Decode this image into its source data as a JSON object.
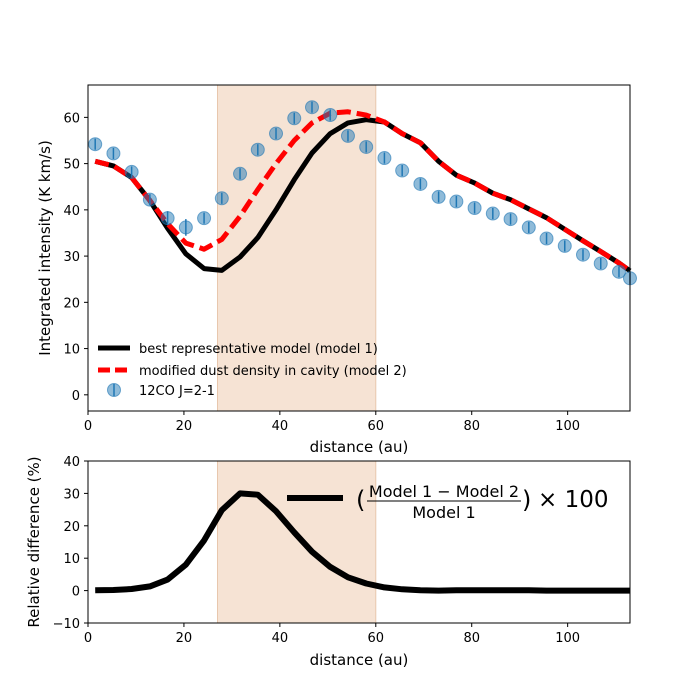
{
  "chart_data": [
    {
      "type": "line",
      "panel": "top",
      "xlabel": "distance (au)",
      "ylabel": "Integrated intensity (K km/s)",
      "xlim": [
        0,
        113
      ],
      "ylim": [
        -3.5,
        67
      ],
      "xticks": [
        "0",
        "20",
        "40",
        "60",
        "80",
        "100"
      ],
      "yticks": [
        "0",
        "10",
        "20",
        "30",
        "40",
        "50",
        "60"
      ],
      "shaded_region": [
        27,
        60
      ],
      "shade_color": "#f6e3d4",
      "legend_position": "lower-left",
      "series": [
        {
          "name": "best representative model (model 1)",
          "style": "solid",
          "color": "#000000",
          "x": [
            1.5,
            5.3,
            9.1,
            12.9,
            16.6,
            20.4,
            24.2,
            27.9,
            31.7,
            35.4,
            39.2,
            43.0,
            46.7,
            50.5,
            54.2,
            58.0,
            61.8,
            65.5,
            69.3,
            73.1,
            76.8,
            80.6,
            84.4,
            88.1,
            91.9,
            95.6,
            99.4,
            103.2,
            106.9,
            110.7,
            113.0
          ],
          "y": [
            50.5,
            49.5,
            47.0,
            42.0,
            36.0,
            30.5,
            27.3,
            26.9,
            29.8,
            34.0,
            40.0,
            46.5,
            52.3,
            56.5,
            58.8,
            59.5,
            59.0,
            56.5,
            54.5,
            50.5,
            47.5,
            45.8,
            43.6,
            42.2,
            40.2,
            38.3,
            35.8,
            33.3,
            31.0,
            28.5,
            26.8
          ]
        },
        {
          "name": "modified dust density in cavity (model 2)",
          "style": "dashed",
          "color": "#ff0000",
          "x": [
            1.5,
            5.3,
            9.1,
            12.9,
            16.6,
            20.4,
            24.2,
            27.9,
            31.7,
            35.4,
            39.2,
            43.0,
            46.7,
            50.5,
            54.2,
            58.0,
            61.8,
            65.5,
            69.3,
            73.1,
            76.8,
            80.6,
            84.4,
            88.1,
            91.9,
            95.6,
            99.4,
            103.2,
            106.9,
            110.7,
            113.0
          ],
          "y": [
            50.5,
            49.5,
            47.0,
            42.0,
            37.0,
            32.8,
            31.5,
            33.6,
            38.6,
            44.4,
            50.0,
            55.0,
            58.8,
            60.9,
            61.2,
            60.5,
            59.0,
            56.5,
            54.5,
            50.5,
            47.5,
            45.8,
            43.6,
            42.2,
            40.2,
            38.3,
            35.8,
            33.3,
            31.0,
            28.5,
            26.8
          ]
        },
        {
          "name": "12CO J=2-1",
          "style": "markers",
          "color": "#1f77b4",
          "x": [
            1.5,
            5.3,
            9.1,
            12.9,
            16.6,
            20.4,
            24.2,
            27.9,
            31.7,
            35.4,
            39.2,
            43.0,
            46.7,
            50.5,
            54.2,
            58.0,
            61.8,
            65.5,
            69.3,
            73.1,
            76.8,
            80.6,
            84.4,
            88.1,
            91.9,
            95.6,
            99.4,
            103.2,
            106.9,
            110.7,
            113.0
          ],
          "y": [
            54.2,
            52.2,
            48.2,
            42.2,
            38.2,
            36.2,
            38.2,
            42.5,
            47.8,
            53.0,
            56.5,
            59.8,
            62.2,
            60.5,
            56.0,
            53.6,
            51.2,
            48.5,
            45.6,
            42.8,
            41.8,
            40.4,
            39.2,
            38.0,
            36.2,
            33.8,
            32.2,
            30.3,
            28.4,
            26.6,
            25.2
          ],
          "yerr": [
            1.2,
            1.2,
            1.2,
            1.2,
            1.5,
            1.8,
            1.2,
            1.2,
            1.2,
            1.2,
            1.2,
            1.2,
            1.2,
            1.2,
            1.2,
            1.2,
            1.2,
            1.2,
            1.2,
            1.2,
            1.2,
            1.2,
            1.2,
            1.2,
            1.2,
            1.2,
            1.2,
            1.2,
            1.2,
            1.2,
            1.2
          ]
        }
      ]
    },
    {
      "type": "line",
      "panel": "bottom",
      "xlabel": "distance (au)",
      "ylabel": "Relative difference (%)",
      "xlim": [
        0,
        113
      ],
      "ylim": [
        -10,
        40
      ],
      "xticks": [
        "0",
        "20",
        "40",
        "60",
        "80",
        "100"
      ],
      "yticks": [
        "−10",
        "0",
        "10",
        "20",
        "30",
        "40"
      ],
      "shaded_region": [
        27,
        60
      ],
      "shade_color": "#f6e3d4",
      "legend_position": "upper-right",
      "legend_label": {
        "open": "(",
        "numerator": "Model 1 − Model 2",
        "denominator": "Model 1",
        "close": ")",
        "times": "× 100"
      },
      "series": [
        {
          "name": "relative difference",
          "style": "solid",
          "color": "#000000",
          "x": [
            1.5,
            5.3,
            9.1,
            12.9,
            16.6,
            20.4,
            24.2,
            27.9,
            31.7,
            35.4,
            39.2,
            43.0,
            46.7,
            50.5,
            54.2,
            58.0,
            61.8,
            65.5,
            69.3,
            73.1,
            76.8,
            80.6,
            84.4,
            88.1,
            91.9,
            95.6,
            99.4,
            103.2,
            106.9,
            110.7,
            113.0
          ],
          "y": [
            0.1,
            0.2,
            0.5,
            1.3,
            3.4,
            8.0,
            15.5,
            24.8,
            30.0,
            29.6,
            24.5,
            18.0,
            12.0,
            7.3,
            4.1,
            2.2,
            1.0,
            0.4,
            0.1,
            0.0,
            0.1,
            0.1,
            0.1,
            0.1,
            0.1,
            0.0,
            0.0,
            0.0,
            0.0,
            0.0,
            0.0
          ]
        }
      ]
    }
  ]
}
